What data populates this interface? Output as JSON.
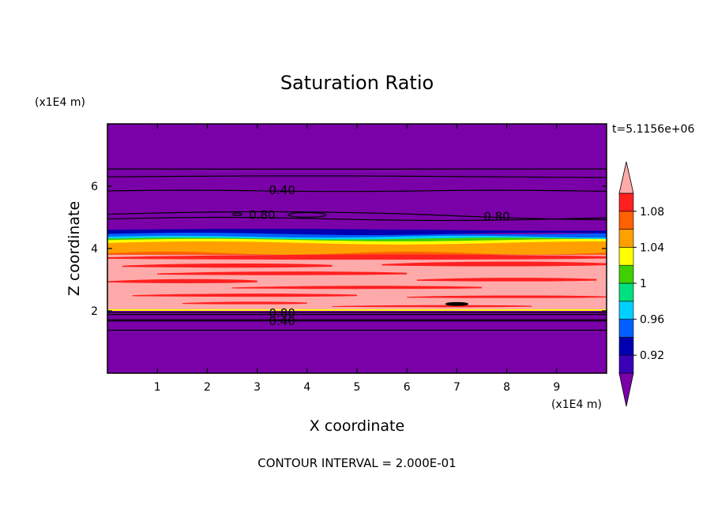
{
  "chart_data": {
    "type": "heatmap",
    "title": "Saturation Ratio",
    "xlabel": "X coordinate",
    "ylabel": "Z coordinate",
    "x_unit_label": "(x1E4 m)",
    "y_unit_label": "(x1E4 m)",
    "time_label": "t=5.1156e+06",
    "footer": "CONTOUR INTERVAL = 2.000E-01",
    "xlim": [
      0,
      10
    ],
    "ylim": [
      0,
      8
    ],
    "x_ticks": [
      1,
      2,
      3,
      4,
      5,
      6,
      7,
      8,
      9
    ],
    "y_ticks": [
      2,
      4,
      6
    ],
    "colorbar": {
      "levels": [
        0.92,
        0.94,
        0.96,
        0.98,
        1.0,
        1.02,
        1.04,
        1.06,
        1.08
      ],
      "labeled_ticks": [
        "0.92",
        "0.96",
        "1",
        "1.04",
        "1.08"
      ],
      "colors": [
        "#7a00a8",
        "#3a00b8",
        "#0000b0",
        "#0060ff",
        "#00d0ff",
        "#00e080",
        "#40d000",
        "#ffff00",
        "#ffa000",
        "#ff6000",
        "#ff2020",
        "#ffaaaa"
      ]
    },
    "bands": [
      {
        "z_range": [
          0.0,
          2.0
        ],
        "value": "<0.92"
      },
      {
        "z_range": [
          2.0,
          2.05
        ],
        "value": "1.02-1.04"
      },
      {
        "z_range": [
          2.05,
          3.8
        ],
        "value": ">1.08 with 1.06-1.08 streaks"
      },
      {
        "z_range": [
          3.8,
          4.3
        ],
        "value": "1.04-1.08"
      },
      {
        "z_range": [
          4.3,
          4.6
        ],
        "value": "0.92-1.00"
      },
      {
        "z_range": [
          4.6,
          8.0
        ],
        "value": "<0.92"
      }
    ],
    "contour_labels": [
      {
        "text": "0.40",
        "x": 3.5,
        "z": 5.9
      },
      {
        "text": "0.80",
        "x": 3.1,
        "z": 5.1
      },
      {
        "text": "0.80",
        "x": 7.8,
        "z": 5.05
      },
      {
        "text": "0.80",
        "x": 3.5,
        "z": 1.95
      },
      {
        "text": "0.40",
        "x": 3.5,
        "z": 1.7
      }
    ]
  }
}
